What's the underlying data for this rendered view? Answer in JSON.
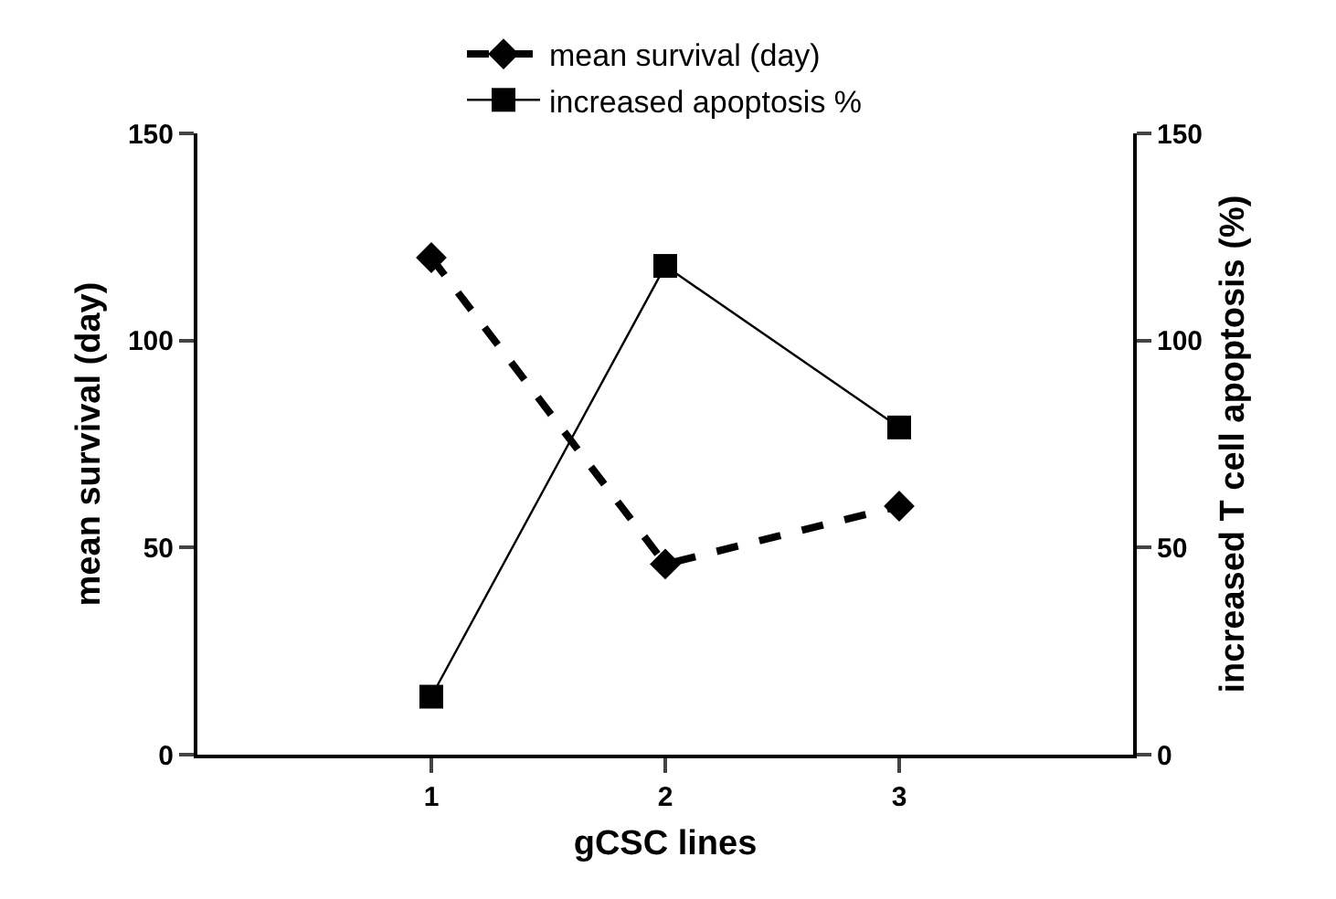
{
  "chart_data": {
    "type": "line",
    "xlabel": "gCSC lines",
    "ylabel": "mean survival (day)",
    "y2label": "increased T cell apoptosis (%)",
    "x": [
      1,
      2,
      3
    ],
    "xlim": [
      0,
      4
    ],
    "xticks": [
      1,
      2,
      3
    ],
    "ylim": [
      0,
      150
    ],
    "yticks": [
      0,
      50,
      100,
      150
    ],
    "y2lim": [
      0,
      150
    ],
    "y2ticks": [
      0,
      50,
      100,
      150
    ],
    "legend": "top",
    "series": [
      {
        "name": "mean survival (day)",
        "color": "#000000",
        "values": [
          120,
          46,
          60
        ],
        "line_style": "dashed",
        "marker": "diamond"
      },
      {
        "name": "increased apoptosis %",
        "color": "#000000",
        "values": [
          14,
          118,
          79
        ],
        "axis": "y2",
        "line_style": "solid",
        "marker": "square"
      }
    ]
  }
}
